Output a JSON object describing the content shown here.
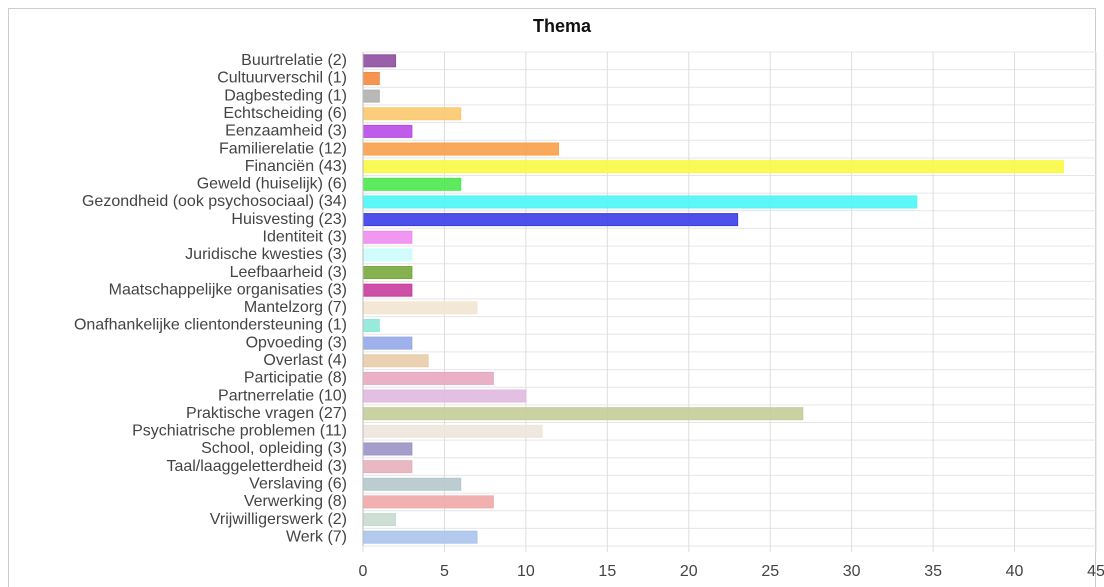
{
  "chart_data": {
    "type": "bar",
    "orientation": "horizontal",
    "title": "Thema",
    "categories": [
      "Buurtrelatie (2)",
      "Cultuurverschil (1)",
      "Dagbesteding (1)",
      "Echtscheiding (6)",
      "Eenzaamheid (3)",
      "Familierelatie (12)",
      "Financiën (43)",
      "Geweld (huiselijk) (6)",
      "Gezondheid (ook psychosociaal) (34)",
      "Huisvesting (23)",
      "Identiteit (3)",
      "Juridische kwesties (3)",
      "Leefbaarheid (3)",
      "Maatschappelijke organisaties (3)",
      "Mantelzorg (7)",
      "Onafhankelijke clientondersteuning (1)",
      "Opvoeding (3)",
      "Overlast (4)",
      "Participatie (8)",
      "Partnerrelatie (10)",
      "Praktische vragen (27)",
      "Psychiatrische problemen (11)",
      "School, opleiding (3)",
      "Taal/laaggeletterdheid (3)",
      "Verslaving (6)",
      "Verwerking (8)",
      "Vrijwilligerswerk (2)",
      "Werk (7)"
    ],
    "values": [
      2,
      1,
      1,
      6,
      3,
      12,
      43,
      6,
      34,
      23,
      3,
      3,
      3,
      3,
      7,
      1,
      3,
      4,
      8,
      10,
      27,
      11,
      3,
      3,
      6,
      8,
      2,
      7
    ],
    "colors": [
      "#8e4fa0",
      "#f58a3c",
      "#b0b0b0",
      "#fcc96e",
      "#b84ae8",
      "#f9a04a",
      "#f9f944",
      "#4ce84c",
      "#4cf6f6",
      "#3c3ce8",
      "#f08cf0",
      "#ccfcfc",
      "#78a83c",
      "#c83c9c",
      "#f2e6d2",
      "#8ce8d8",
      "#94a8e8",
      "#e8cca8",
      "#e8a8c0",
      "#e0b8e0",
      "#c4cc98",
      "#ece6dc",
      "#9c94c4",
      "#e8b0bc",
      "#b4c8cc",
      "#f0a8a8",
      "#c8dcd0",
      "#a8c4ec"
    ],
    "xlim": [
      0,
      45
    ],
    "xticks": [
      0,
      5,
      10,
      15,
      20,
      25,
      30,
      35,
      40,
      45
    ],
    "grid": true
  }
}
